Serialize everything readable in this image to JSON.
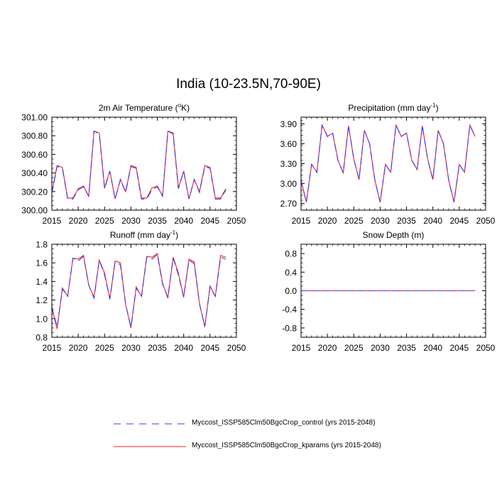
{
  "title": "India (10-23.5N,70-90E)",
  "colors": {
    "control": "#2f3bff",
    "kparams": "#ff1a1a",
    "axis": "#000000"
  },
  "legend": [
    {
      "label": "Myccost_ISSP585Clm50BgcCrop_control (yrs 2015-2048)",
      "color": "#2f3bff",
      "dash": "dashed"
    },
    {
      "label": "Myccost_ISSP585Clm50BgcCrop_kparams (yrs 2015-2048)",
      "color": "#ff1a1a",
      "dash": "solid"
    }
  ],
  "chart_data": [
    {
      "type": "line",
      "title": "2m Air Temperature (°K)",
      "title_parts": [
        "2m Air Temperature (",
        "o",
        "K)"
      ],
      "xlim": [
        2015,
        2050
      ],
      "ylim": [
        300.0,
        301.0
      ],
      "xticks": [
        "2015",
        "2020",
        "2025",
        "2030",
        "2035",
        "2040",
        "2045",
        "2050"
      ],
      "yticks": [
        "300.00",
        "300.20",
        "300.40",
        "300.60",
        "300.80",
        "301.00"
      ],
      "x": [
        2015,
        2016,
        2017,
        2018,
        2019,
        2020,
        2021,
        2022,
        2023,
        2024,
        2025,
        2026,
        2027,
        2028,
        2029,
        2030,
        2031,
        2032,
        2033,
        2034,
        2035,
        2036,
        2037,
        2038,
        2039,
        2040,
        2041,
        2042,
        2043,
        2044,
        2045,
        2046,
        2047,
        2048
      ],
      "series": [
        {
          "name": "Myccost_ISSP585Clm50BgcCrop_control (yrs 2015-2048)",
          "values": [
            300.18,
            300.47,
            300.45,
            300.12,
            300.12,
            300.22,
            300.25,
            300.15,
            300.85,
            300.82,
            300.23,
            300.42,
            300.12,
            300.33,
            300.19,
            300.47,
            300.45,
            300.12,
            300.12,
            300.22,
            300.25,
            300.15,
            300.85,
            300.82,
            300.23,
            300.42,
            300.12,
            300.33,
            300.19,
            300.47,
            300.45,
            300.12,
            300.12,
            300.22
          ]
        },
        {
          "name": "Myccost_ISSP585Clm50BgcCrop_kparams (yrs 2015-2048)",
          "values": [
            300.19,
            300.48,
            300.46,
            300.13,
            300.13,
            300.23,
            300.26,
            300.15,
            300.85,
            300.83,
            300.24,
            300.42,
            300.12,
            300.33,
            300.2,
            300.48,
            300.46,
            300.13,
            300.13,
            300.24,
            300.26,
            300.15,
            300.85,
            300.83,
            300.24,
            300.42,
            300.12,
            300.33,
            300.2,
            300.48,
            300.46,
            300.13,
            300.13,
            300.23
          ]
        }
      ]
    },
    {
      "type": "line",
      "title": "Precipitation (mm day⁻¹)",
      "title_parts": [
        "Precipitation (mm day",
        "-1",
        ")"
      ],
      "xlim": [
        2015,
        2050
      ],
      "ylim": [
        2.6,
        4.0
      ],
      "xticks": [
        "2015",
        "2020",
        "2025",
        "2030",
        "2035",
        "2040",
        "2045",
        "2050"
      ],
      "yticks": [
        "2.70",
        "3.00",
        "3.30",
        "3.60",
        "3.90"
      ],
      "x": [
        2015,
        2016,
        2017,
        2018,
        2019,
        2020,
        2021,
        2022,
        2023,
        2024,
        2025,
        2026,
        2027,
        2028,
        2029,
        2030,
        2031,
        2032,
        2033,
        2034,
        2035,
        2036,
        2037,
        2038,
        2039,
        2040,
        2041,
        2042,
        2043,
        2044,
        2045,
        2046,
        2047,
        2048
      ],
      "series": [
        {
          "name": "Myccost_ISSP585Clm50BgcCrop_control (yrs 2015-2048)",
          "values": [
            3.05,
            2.72,
            3.29,
            3.17,
            3.88,
            3.71,
            3.76,
            3.35,
            3.16,
            3.87,
            3.37,
            3.06,
            3.8,
            3.6,
            3.05,
            2.72,
            3.29,
            3.17,
            3.88,
            3.71,
            3.76,
            3.35,
            3.21,
            3.87,
            3.37,
            3.06,
            3.8,
            3.6,
            3.05,
            2.72,
            3.29,
            3.17,
            3.88,
            3.71
          ]
        },
        {
          "name": "Myccost_ISSP585Clm50BgcCrop_kparams (yrs 2015-2048)",
          "values": [
            3.05,
            2.72,
            3.29,
            3.17,
            3.88,
            3.71,
            3.76,
            3.35,
            3.16,
            3.87,
            3.37,
            3.06,
            3.8,
            3.6,
            3.05,
            2.72,
            3.29,
            3.17,
            3.88,
            3.71,
            3.76,
            3.35,
            3.21,
            3.87,
            3.37,
            3.06,
            3.8,
            3.6,
            3.05,
            2.72,
            3.29,
            3.17,
            3.88,
            3.71
          ]
        }
      ]
    },
    {
      "type": "line",
      "title": "Runoff (mm day⁻¹)",
      "title_parts": [
        "Runoff (mm day",
        "-1",
        ")"
      ],
      "xlim": [
        2015,
        2050
      ],
      "ylim": [
        0.8,
        1.8
      ],
      "xticks": [
        "2015",
        "2020",
        "2025",
        "2030",
        "2035",
        "2040",
        "2045",
        "2050"
      ],
      "yticks": [
        "0.8",
        "1.0",
        "1.2",
        "1.4",
        "1.6",
        "1.8"
      ],
      "x": [
        2015,
        2016,
        2017,
        2018,
        2019,
        2020,
        2021,
        2022,
        2023,
        2024,
        2025,
        2026,
        2027,
        2028,
        2029,
        2030,
        2031,
        2032,
        2033,
        2034,
        2035,
        2036,
        2037,
        2038,
        2039,
        2040,
        2041,
        2042,
        2043,
        2044,
        2045,
        2046,
        2047,
        2048
      ],
      "series": [
        {
          "name": "Myccost_ISSP585Clm50BgcCrop_control (yrs 2015-2048)",
          "values": [
            1.13,
            0.91,
            1.32,
            1.24,
            1.65,
            1.62,
            1.67,
            1.36,
            1.22,
            1.63,
            1.47,
            1.21,
            1.61,
            1.58,
            1.15,
            0.91,
            1.33,
            1.24,
            1.66,
            1.64,
            1.69,
            1.37,
            1.23,
            1.65,
            1.47,
            1.23,
            1.63,
            1.59,
            1.16,
            0.92,
            1.34,
            1.24,
            1.66,
            1.64
          ]
        },
        {
          "name": "Myccost_ISSP585Clm50BgcCrop_kparams (yrs 2015-2048)",
          "values": [
            1.12,
            0.89,
            1.33,
            1.24,
            1.65,
            1.64,
            1.68,
            1.36,
            1.23,
            1.63,
            1.49,
            1.21,
            1.62,
            1.6,
            1.15,
            0.9,
            1.34,
            1.24,
            1.67,
            1.66,
            1.7,
            1.38,
            1.22,
            1.66,
            1.49,
            1.23,
            1.64,
            1.61,
            1.16,
            0.91,
            1.35,
            1.24,
            1.68,
            1.66
          ]
        }
      ]
    },
    {
      "type": "line",
      "title": "Snow Depth (m)",
      "title_parts": [
        "Snow Depth (m)",
        "",
        ""
      ],
      "xlim": [
        2015,
        2050
      ],
      "ylim": [
        -1.0,
        1.0
      ],
      "xticks": [
        "2015",
        "2020",
        "2025",
        "2030",
        "2035",
        "2040",
        "2045",
        "2050"
      ],
      "yticks": [
        "-0.8",
        "-0.4",
        "0.0",
        "0.4",
        "0.8"
      ],
      "x": [
        2015,
        2016,
        2017,
        2018,
        2019,
        2020,
        2021,
        2022,
        2023,
        2024,
        2025,
        2026,
        2027,
        2028,
        2029,
        2030,
        2031,
        2032,
        2033,
        2034,
        2035,
        2036,
        2037,
        2038,
        2039,
        2040,
        2041,
        2042,
        2043,
        2044,
        2045,
        2046,
        2047,
        2048
      ],
      "series": [
        {
          "name": "Myccost_ISSP585Clm50BgcCrop_control (yrs 2015-2048)",
          "values": [
            0,
            0,
            0,
            0,
            0,
            0,
            0,
            0,
            0,
            0,
            0,
            0,
            0,
            0,
            0,
            0,
            0,
            0,
            0,
            0,
            0,
            0,
            0,
            0,
            0,
            0,
            0,
            0,
            0,
            0,
            0,
            0,
            0,
            0
          ]
        },
        {
          "name": "Myccost_ISSP585Clm50BgcCrop_kparams (yrs 2015-2048)",
          "values": [
            0,
            0,
            0,
            0,
            0,
            0,
            0,
            0,
            0,
            0,
            0,
            0,
            0,
            0,
            0,
            0,
            0,
            0,
            0,
            0,
            0,
            0,
            0,
            0,
            0,
            0,
            0,
            0,
            0,
            0,
            0,
            0,
            0,
            0
          ]
        }
      ]
    }
  ]
}
